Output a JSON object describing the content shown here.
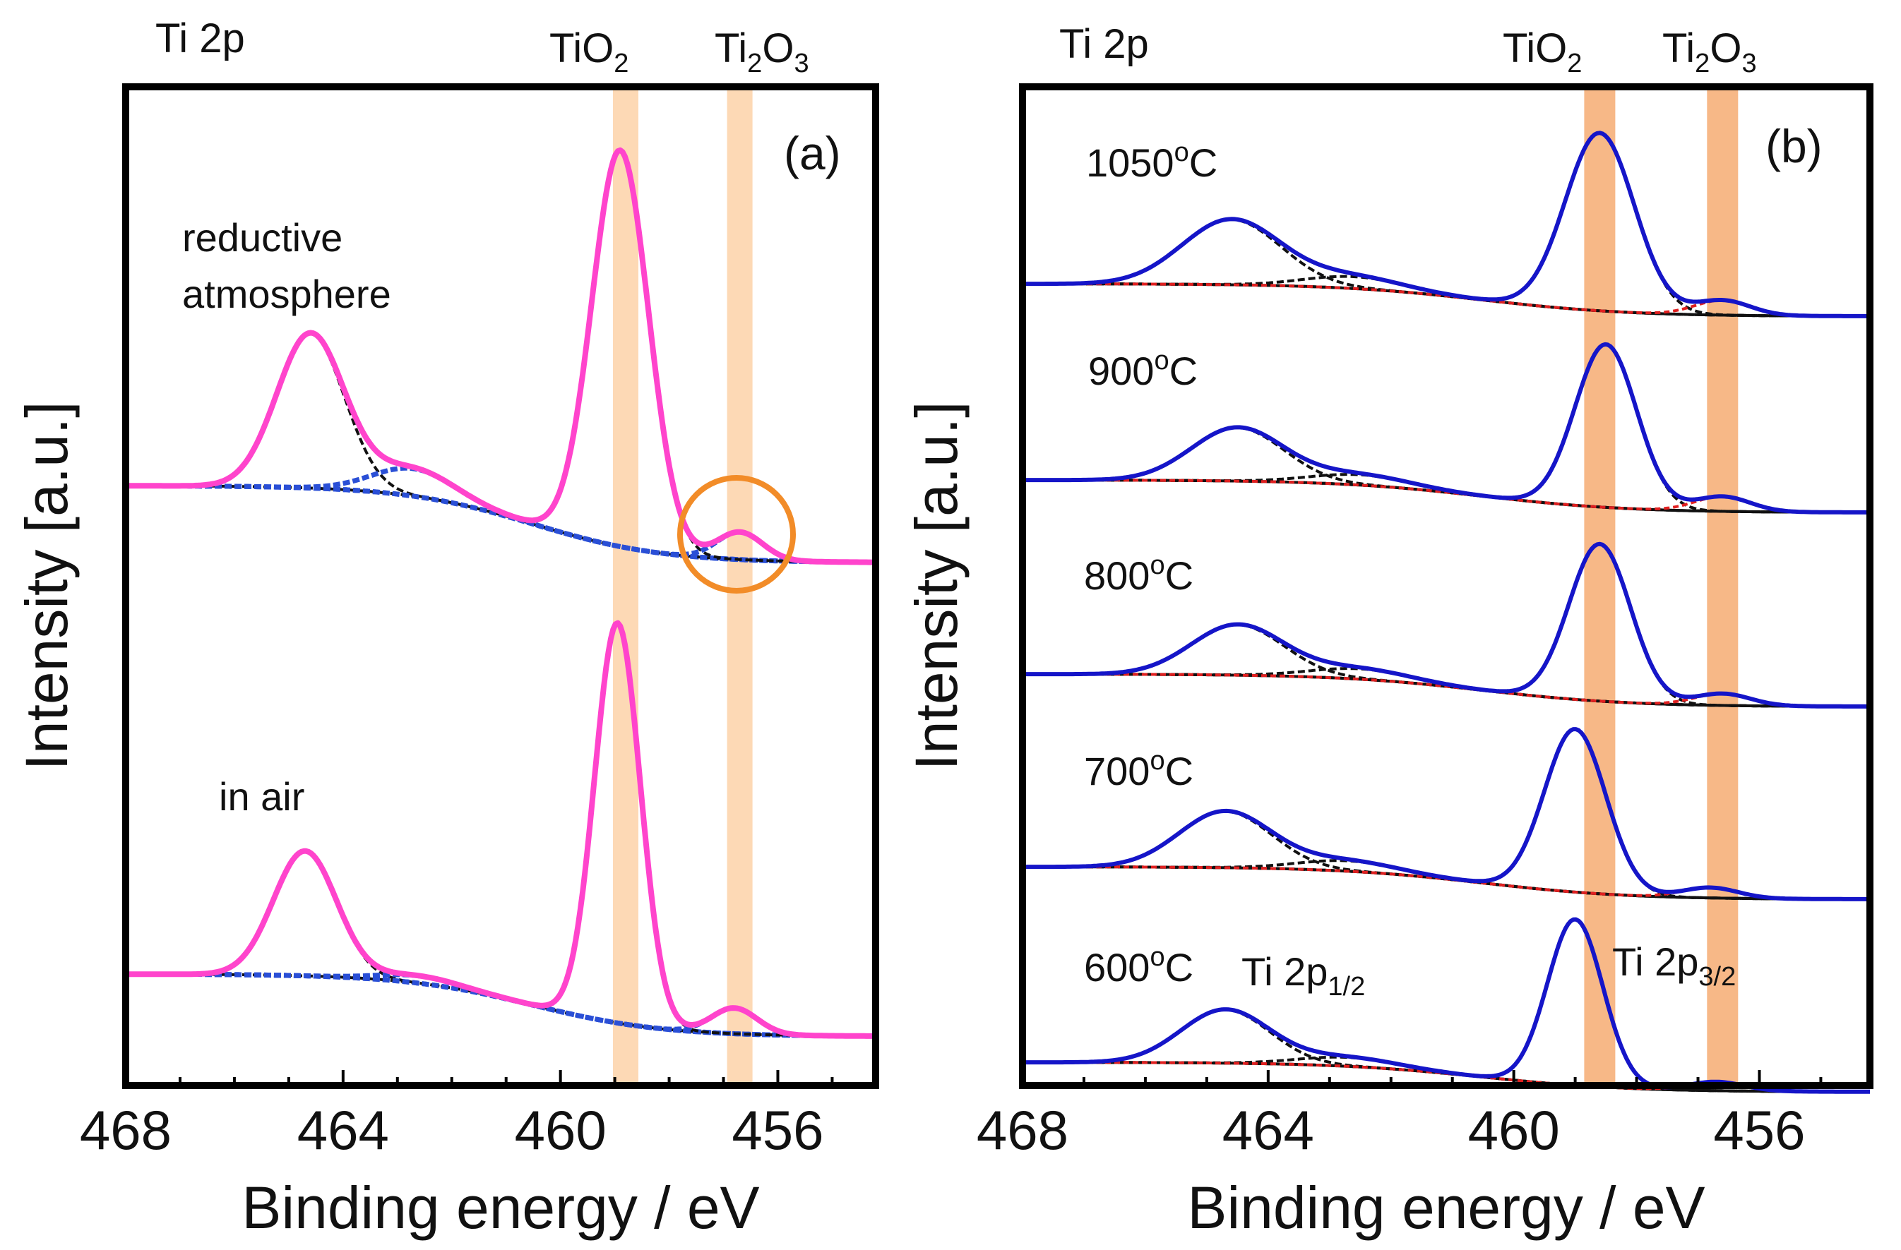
{
  "figure": {
    "panel_a": {
      "tag": "(a)",
      "header": {
        "element": "Ti 2p",
        "species1_main": "TiO",
        "species1_sub": "2",
        "species2_a": "Ti",
        "species2_sub1": "2",
        "species2_b": "O",
        "species2_sub2": "3"
      },
      "ylabel": "Intensity [a.u.]",
      "xlabel": "Binding energy / eV",
      "labels": {
        "reductive_line1": "reductive",
        "reductive_line2": "atmosphere",
        "air": "in air"
      }
    },
    "panel_b": {
      "tag": "(b)",
      "header": {
        "element": "Ti 2p",
        "species1_main": "TiO",
        "species1_sub": "2",
        "species2_a": "Ti",
        "species2_sub1": "2",
        "species2_b": "O",
        "species2_sub2": "3"
      },
      "ylabel": "Intensity [a.u.]",
      "xlabel": "Binding energy / eV",
      "temps": [
        {
          "num": "1050",
          "deg": "o",
          "unit": "C"
        },
        {
          "num": "900",
          "deg": "o",
          "unit": "C"
        },
        {
          "num": "800",
          "deg": "o",
          "unit": "C"
        },
        {
          "num": "700",
          "deg": "o",
          "unit": "C"
        },
        {
          "num": "600",
          "deg": "o",
          "unit": "C"
        }
      ],
      "peak_labels": {
        "p12_main": "Ti 2p",
        "p12_sub": "1/2",
        "p32_main": "Ti 2p",
        "p32_sub": "3/2"
      }
    }
  },
  "colors": {
    "measured_a": "#ff44cc",
    "measured_b": "#1515c8",
    "fit_black": "#111111",
    "fit_blue": "#2a4fd6",
    "fit_red": "#e02020",
    "band_a": "#fdd9b5",
    "band_b": "#f7b887",
    "circle": "#f28c28"
  },
  "chart_data": [
    {
      "type": "line",
      "panel": "a",
      "xlabel": "Binding energy / eV",
      "ylabel": "Intensity [a.u.]",
      "xlim": [
        468,
        454.2
      ],
      "xticks": [
        468,
        464,
        460,
        456
      ],
      "bands_eV": {
        "TiO2": 458.8,
        "Ti2O3": 456.7
      },
      "series": [
        {
          "name": "reductive atmosphere",
          "baseline_left": 0.0,
          "baseline_right": -0.21,
          "peaks": [
            {
              "label": "Ti 2p1/2 (TiO2)",
              "center": 464.6,
              "height": 0.42,
              "sigma": 0.62
            },
            {
              "label": "Ti 2p1/2 (Ti2O3)",
              "center": 462.7,
              "height": 0.075,
              "sigma": 0.75
            },
            {
              "label": "Ti 2p3/2 (TiO2)",
              "center": 458.9,
              "height": 1.08,
              "sigma": 0.52
            },
            {
              "label": "Ti 2p3/2 (Ti2O3)",
              "center": 456.7,
              "height": 0.075,
              "sigma": 0.42
            }
          ]
        },
        {
          "name": "in air",
          "baseline_left": 0.0,
          "baseline_right": -0.17,
          "peaks": [
            {
              "label": "Ti 2p1/2 (TiO2)",
              "center": 464.7,
              "height": 0.34,
              "sigma": 0.58
            },
            {
              "label": "Ti 2p1/2 (Ti2O3)",
              "center": 462.6,
              "height": 0.02,
              "sigma": 0.7
            },
            {
              "label": "Ti 2p3/2 (TiO2)",
              "center": 458.95,
              "height": 1.09,
              "sigma": 0.42
            },
            {
              "label": "Ti 2p3/2 (Ti2O3)",
              "center": 456.8,
              "height": 0.07,
              "sigma": 0.42
            }
          ]
        }
      ]
    },
    {
      "type": "line",
      "panel": "b",
      "xlabel": "Binding energy / eV",
      "ylabel": "Intensity [a.u.]",
      "xlim": [
        468,
        454.2
      ],
      "xticks": [
        468,
        464,
        460,
        456
      ],
      "bands_eV": {
        "TiO2": 458.6,
        "Ti2O3": 456.6
      },
      "series": [
        {
          "name": "1050oC",
          "baseline_left": 0.0,
          "baseline_right": -0.11,
          "peaks": [
            {
              "label": "Ti 2p1/2 (TiO2)",
              "center": 464.6,
              "height": 0.22,
              "sigma": 0.8
            },
            {
              "label": "Ti 2p1/2 (Ti2O3)",
              "center": 462.6,
              "height": 0.04,
              "sigma": 0.8
            },
            {
              "label": "Ti 2p3/2 (TiO2)",
              "center": 458.6,
              "height": 0.6,
              "sigma": 0.56
            },
            {
              "label": "Ti 2p3/2 (Ti2O3)",
              "center": 456.6,
              "height": 0.05,
              "sigma": 0.45
            }
          ]
        },
        {
          "name": "900oC",
          "baseline_left": 0.0,
          "baseline_right": -0.11,
          "peaks": [
            {
              "label": "Ti 2p1/2 (TiO2)",
              "center": 464.5,
              "height": 0.18,
              "sigma": 0.75
            },
            {
              "label": "Ti 2p1/2 (Ti2O3)",
              "center": 462.5,
              "height": 0.035,
              "sigma": 0.8
            },
            {
              "label": "Ti 2p3/2 (TiO2)",
              "center": 458.5,
              "height": 0.55,
              "sigma": 0.5
            },
            {
              "label": "Ti 2p3/2 (Ti2O3)",
              "center": 456.6,
              "height": 0.05,
              "sigma": 0.45
            }
          ]
        },
        {
          "name": "800oC",
          "baseline_left": 0.0,
          "baseline_right": -0.11,
          "peaks": [
            {
              "label": "Ti 2p1/2 (TiO2)",
              "center": 464.5,
              "height": 0.17,
              "sigma": 0.75
            },
            {
              "label": "Ti 2p1/2 (Ti2O3)",
              "center": 462.5,
              "height": 0.035,
              "sigma": 0.8
            },
            {
              "label": "Ti 2p3/2 (TiO2)",
              "center": 458.6,
              "height": 0.53,
              "sigma": 0.5
            },
            {
              "label": "Ti 2p3/2 (Ti2O3)",
              "center": 456.6,
              "height": 0.04,
              "sigma": 0.45
            }
          ]
        },
        {
          "name": "700oC",
          "baseline_left": 0.0,
          "baseline_right": -0.11,
          "peaks": [
            {
              "label": "Ti 2p1/2 (TiO2)",
              "center": 464.7,
              "height": 0.19,
              "sigma": 0.75
            },
            {
              "label": "Ti 2p1/2 (Ti2O3)",
              "center": 462.7,
              "height": 0.035,
              "sigma": 0.8
            },
            {
              "label": "Ti 2p3/2 (TiO2)",
              "center": 459.0,
              "height": 0.55,
              "sigma": 0.5
            },
            {
              "label": "Ti 2p3/2 (Ti2O3)",
              "center": 456.8,
              "height": 0.035,
              "sigma": 0.45
            }
          ]
        },
        {
          "name": "600oC",
          "baseline_left": 0.0,
          "baseline_right": -0.1,
          "peaks": [
            {
              "label": "Ti 2p1/2 (TiO2)",
              "center": 464.7,
              "height": 0.18,
              "sigma": 0.72
            },
            {
              "label": "Ti 2p1/2 (Ti2O3)",
              "center": 462.7,
              "height": 0.03,
              "sigma": 0.8
            },
            {
              "label": "Ti 2p3/2 (TiO2)",
              "center": 459.0,
              "height": 0.56,
              "sigma": 0.45
            },
            {
              "label": "Ti 2p3/2 (Ti2O3)",
              "center": 456.7,
              "height": 0.03,
              "sigma": 0.45
            }
          ]
        }
      ]
    }
  ]
}
